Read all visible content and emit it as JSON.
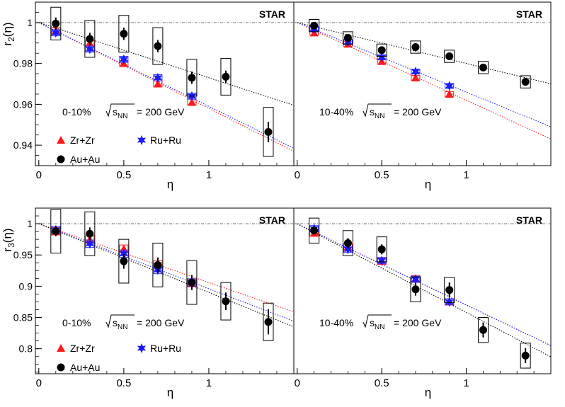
{
  "figure": {
    "experiment": "STAR",
    "energy_prefix": "= 200 GeV",
    "sqrt_s_sub": "NN",
    "sqrt_s_var": "s"
  },
  "colors": {
    "zr": "#ff1a1a",
    "ru": "#1a1aff",
    "au": "#000000",
    "zr_sys": "#ff2020",
    "ru_sys": "#3333ff"
  },
  "chart_data": [
    {
      "type": "scatter",
      "panel": "r2-central",
      "ylabel": "r2(η)",
      "ylabel_main": "r",
      "ylabel_sub": "2",
      "ylabel_arg": "(η)",
      "xlabel": "η",
      "centrality": "0-10%",
      "xlim": [
        -0.02,
        1.5
      ],
      "ylim": [
        0.93,
        1.01
      ],
      "xticks": [
        "0",
        "0.5",
        "1"
      ],
      "xtick_values": [
        0,
        0.5,
        1
      ],
      "yticks": [
        "0.94",
        "0.96",
        "0.98",
        "1"
      ],
      "ytick_values": [
        0.94,
        0.96,
        0.98,
        1.0
      ],
      "legend": [
        "Zr+Zr",
        "Ru+Ru",
        "Au+Au"
      ],
      "series": [
        {
          "name": "Zr+Zr",
          "x": [
            0.1,
            0.3,
            0.5,
            0.7,
            0.9
          ],
          "y": [
            0.996,
            0.99,
            0.98,
            0.97,
            0.961
          ],
          "sys": [
            0.0015,
            0.0015,
            0.0015,
            0.0015,
            0.0015
          ]
        },
        {
          "name": "Ru+Ru",
          "x": [
            0.1,
            0.3,
            0.5,
            0.7,
            0.9
          ],
          "y": [
            0.995,
            0.987,
            0.982,
            0.973,
            0.964
          ],
          "sys": [
            0.0015,
            0.0015,
            0.0015,
            0.0015,
            0.0015
          ]
        },
        {
          "name": "Au+Au",
          "x": [
            0.1,
            0.3,
            0.5,
            0.7,
            0.9,
            1.1,
            1.35
          ],
          "y": [
            0.9995,
            0.992,
            0.9945,
            0.9885,
            0.973,
            0.9735,
            0.9465
          ],
          "err": [
            0.003,
            0.003,
            0.003,
            0.003,
            0.003,
            0.003,
            0.005
          ],
          "sys": [
            0.008,
            0.009,
            0.009,
            0.009,
            0.009,
            0.009,
            0.012
          ]
        }
      ],
      "fits": [
        {
          "series": "Zr+Zr",
          "slope": -0.042
        },
        {
          "series": "Ru+Ru",
          "slope": -0.041
        },
        {
          "series": "Au+Au",
          "slope": -0.027
        }
      ]
    },
    {
      "type": "scatter",
      "panel": "r2-midcentral",
      "xlabel": "η",
      "centrality": "10-40%",
      "xlim": [
        -0.02,
        1.5
      ],
      "ylim": [
        0.93,
        1.01
      ],
      "xticks": [
        "0",
        "0.5",
        "1"
      ],
      "xtick_values": [
        0,
        0.5,
        1
      ],
      "series": [
        {
          "name": "Zr+Zr",
          "x": [
            0.1,
            0.3,
            0.5,
            0.7,
            0.9
          ],
          "y": [
            0.995,
            0.9895,
            0.981,
            0.973,
            0.965
          ],
          "sys": [
            0.0012,
            0.0012,
            0.0012,
            0.0012,
            0.0012
          ]
        },
        {
          "name": "Ru+Ru",
          "x": [
            0.1,
            0.3,
            0.5,
            0.7,
            0.9
          ],
          "y": [
            0.997,
            0.9905,
            0.983,
            0.976,
            0.969
          ],
          "sys": [
            0.0012,
            0.0012,
            0.0012,
            0.0012,
            0.0012
          ]
        },
        {
          "name": "Au+Au",
          "x": [
            0.1,
            0.3,
            0.5,
            0.7,
            0.9,
            1.1,
            1.35
          ],
          "y": [
            0.9985,
            0.9925,
            0.9865,
            0.988,
            0.9835,
            0.978,
            0.971
          ],
          "err": [
            0.0015,
            0.0015,
            0.0015,
            0.0015,
            0.0015,
            0.0015,
            0.0015
          ],
          "sys": [
            0.003,
            0.003,
            0.003,
            0.003,
            0.003,
            0.003,
            0.003
          ]
        }
      ],
      "fits": [
        {
          "series": "Zr+Zr",
          "slope": -0.038
        },
        {
          "series": "Ru+Ru",
          "slope": -0.034
        },
        {
          "series": "Au+Au",
          "slope": -0.02
        }
      ]
    },
    {
      "type": "scatter",
      "panel": "r3-central",
      "ylabel": "r3(η)",
      "ylabel_main": "r",
      "ylabel_sub": "3",
      "ylabel_arg": "(η)",
      "xlabel": "η",
      "centrality": "0-10%",
      "xlim": [
        -0.02,
        1.5
      ],
      "ylim": [
        0.76,
        1.025
      ],
      "xticks": [
        "0",
        "0.5",
        "1"
      ],
      "xtick_values": [
        0,
        0.5,
        1
      ],
      "yticks": [
        "0.8",
        "0.85",
        "0.9",
        "0.95",
        "1"
      ],
      "ytick_values": [
        0.8,
        0.85,
        0.9,
        0.95,
        1.0
      ],
      "legend": [
        "Zr+Zr",
        "Ru+Ru",
        "Au+Au"
      ],
      "series": [
        {
          "name": "Zr+Zr",
          "x": [
            0.1,
            0.3,
            0.5,
            0.7,
            0.9
          ],
          "y": [
            0.988,
            0.975,
            0.96,
            0.935,
            0.905
          ],
          "sys": [
            0.006,
            0.006,
            0.006,
            0.006,
            0.006
          ]
        },
        {
          "name": "Ru+Ru",
          "x": [
            0.1,
            0.3,
            0.5,
            0.7,
            0.9
          ],
          "y": [
            0.99,
            0.968,
            0.952,
            0.926,
            0.906
          ],
          "sys": [
            0.006,
            0.006,
            0.006,
            0.006,
            0.006
          ]
        },
        {
          "name": "Au+Au",
          "x": [
            0.1,
            0.3,
            0.5,
            0.7,
            0.9,
            1.1,
            1.35
          ],
          "y": [
            0.988,
            0.984,
            0.94,
            0.934,
            0.906,
            0.876,
            0.843
          ],
          "err": [
            0.008,
            0.01,
            0.012,
            0.012,
            0.012,
            0.014,
            0.02
          ],
          "sys": [
            0.035,
            0.035,
            0.035,
            0.035,
            0.035,
            0.03,
            0.03
          ]
        }
      ],
      "fits": [
        {
          "series": "Zr+Zr",
          "slope": -0.094
        },
        {
          "series": "Ru+Ru",
          "slope": -0.104
        },
        {
          "series": "Au+Au",
          "slope": -0.11
        }
      ]
    },
    {
      "type": "scatter",
      "panel": "r3-midcentral",
      "xlabel": "η",
      "centrality": "10-40%",
      "xlim": [
        -0.02,
        1.5
      ],
      "ylim": [
        0.76,
        1.025
      ],
      "xticks": [
        "0",
        "0.5",
        "1"
      ],
      "xtick_values": [
        0,
        0.5,
        1
      ],
      "series": [
        {
          "name": "Zr+Zr",
          "x": [
            0.1,
            0.3,
            0.5,
            0.7,
            0.9
          ],
          "y": [
            0.985,
            0.963,
            0.94,
            0.912,
            0.875
          ],
          "sys": [
            0.005,
            0.005,
            0.005,
            0.005,
            0.005
          ]
        },
        {
          "name": "Ru+Ru",
          "x": [
            0.1,
            0.3,
            0.5,
            0.7,
            0.9
          ],
          "y": [
            0.992,
            0.959,
            0.941,
            0.911,
            0.875
          ],
          "sys": [
            0.005,
            0.005,
            0.005,
            0.005,
            0.005
          ]
        },
        {
          "name": "Au+Au",
          "x": [
            0.1,
            0.3,
            0.5,
            0.7,
            0.9,
            1.1,
            1.35
          ],
          "y": [
            0.989,
            0.969,
            0.959,
            0.895,
            0.894,
            0.83,
            0.789
          ],
          "err": [
            0.006,
            0.008,
            0.008,
            0.01,
            0.012,
            0.012,
            0.012
          ],
          "sys": [
            0.02,
            0.02,
            0.02,
            0.02,
            0.02,
            0.02,
            0.02
          ]
        }
      ],
      "fits": [
        {
          "series": "Zr+Zr",
          "slope": -0.13
        },
        {
          "series": "Ru+Ru",
          "slope": -0.13
        },
        {
          "series": "Au+Au",
          "slope": -0.142
        }
      ]
    }
  ]
}
